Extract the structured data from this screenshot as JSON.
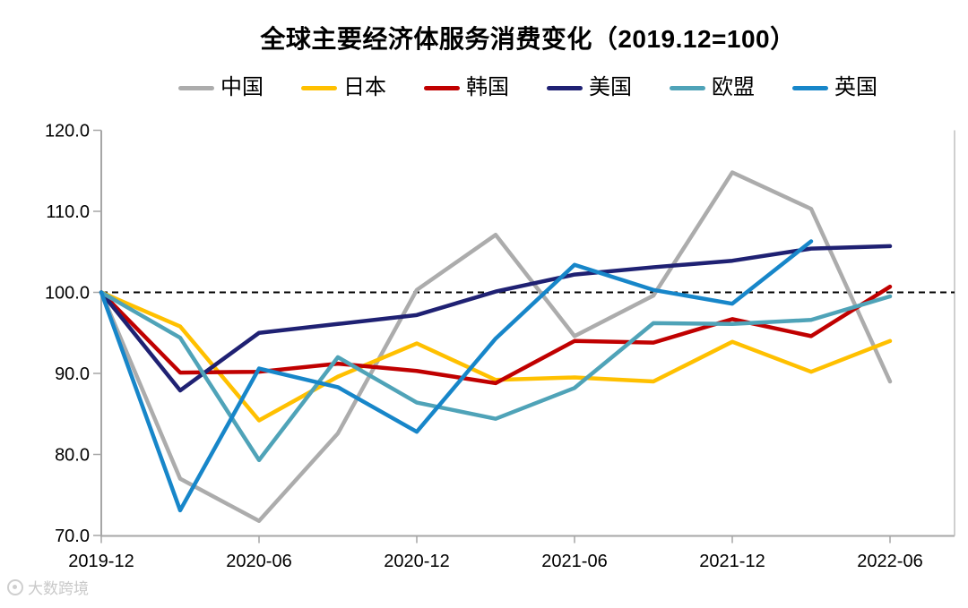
{
  "title": "全球主要经济体服务消费变化（2019.12=100）",
  "watermark": "大数跨境",
  "chart_data": {
    "type": "line",
    "title": "全球主要经济体服务消费变化（2019.12=100）",
    "x": [
      "2019-12",
      "2020-03",
      "2020-06",
      "2020-09",
      "2020-12",
      "2021-03",
      "2021-06",
      "2021-09",
      "2021-12",
      "2022-03",
      "2022-06"
    ],
    "x_tick_labels": [
      "2019-12",
      "2020-06",
      "2020-12",
      "2021-06",
      "2021-12",
      "2022-06"
    ],
    "y_tick_labels": [
      "120.0",
      "110.0",
      "100.0",
      "90.0",
      "80.0",
      "70.0"
    ],
    "ylim": [
      70,
      120
    ],
    "baseline": 100,
    "grid": false,
    "legend_position": "top",
    "axis_color": "#a6a6a6",
    "baseline_color": "#000000",
    "series": [
      {
        "id": "china",
        "name": "中国",
        "color": "#acacac",
        "values": [
          100,
          77.0,
          71.8,
          82.6,
          100.3,
          107.1,
          94.6,
          99.6,
          114.8,
          110.3,
          89.0
        ]
      },
      {
        "id": "japan",
        "name": "日本",
        "color": "#ffc000",
        "values": [
          100,
          95.8,
          84.2,
          89.6,
          93.7,
          89.2,
          89.5,
          89.0,
          93.9,
          90.2,
          94.0
        ]
      },
      {
        "id": "korea",
        "name": "韩国",
        "color": "#c00000",
        "values": [
          100,
          90.1,
          90.2,
          91.2,
          90.3,
          88.8,
          94.0,
          93.8,
          96.7,
          94.6,
          100.7
        ]
      },
      {
        "id": "usa",
        "name": "美国",
        "color": "#1f2173",
        "values": [
          100,
          87.9,
          95.0,
          96.1,
          97.2,
          100.1,
          102.2,
          103.1,
          103.9,
          105.4,
          105.7
        ]
      },
      {
        "id": "eu",
        "name": "欧盟",
        "color": "#4fa3b8",
        "values": [
          100,
          94.4,
          79.3,
          92.0,
          86.4,
          84.4,
          88.2,
          96.2,
          96.1,
          96.6,
          99.5
        ]
      },
      {
        "id": "uk",
        "name": "英国",
        "color": "#1786c9",
        "values": [
          100,
          73.1,
          90.6,
          88.3,
          82.8,
          94.3,
          103.4,
          100.3,
          98.6,
          106.3,
          null
        ]
      }
    ]
  }
}
